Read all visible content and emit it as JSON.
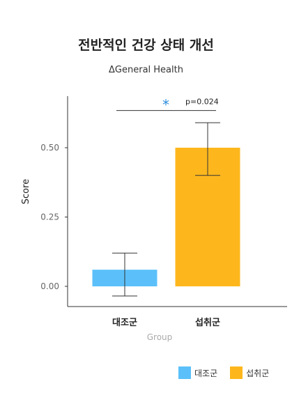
{
  "chart_data": {
    "type": "bar",
    "title": "전반적인 건강 상태 개선",
    "subtitle": "ΔGeneral Health",
    "xlabel": "Group",
    "ylabel": "Score",
    "ylim": [
      -0.06,
      0.68
    ],
    "yticks": [
      "0.00",
      "0.25",
      "0.50"
    ],
    "ytick_values": [
      0.0,
      0.25,
      0.5
    ],
    "categories": [
      "대조군",
      "섭취군"
    ],
    "values": [
      0.06,
      0.5
    ],
    "error_low": [
      -0.035,
      0.4
    ],
    "error_high": [
      0.12,
      0.59
    ],
    "colors": [
      "#5BC0FA",
      "#FDB71D"
    ],
    "annotation": {
      "star": "*",
      "pvalue": "p=0.024",
      "star_color": "#2F8FDB",
      "bracket_y": 0.634
    },
    "legend": [
      "대조군",
      "섭취군"
    ]
  }
}
